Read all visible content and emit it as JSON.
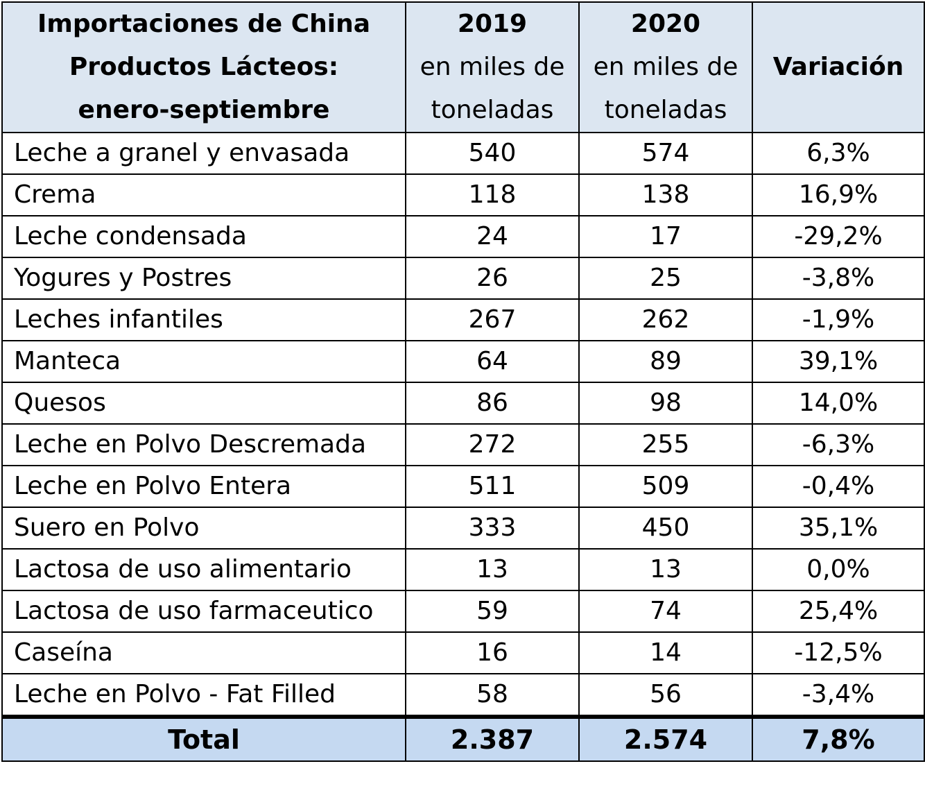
{
  "chart_data": {
    "type": "table",
    "header": {
      "product_lines": [
        "Importaciones de China",
        "Productos Lácteos:",
        "enero-septiembre"
      ],
      "col_2019": {
        "year": "2019",
        "unit_line1": "en miles de",
        "unit_line2": "toneladas"
      },
      "col_2020": {
        "year": "2020",
        "unit_line1": "en miles de",
        "unit_line2": "toneladas"
      },
      "col_var": "Variación"
    },
    "rows": [
      {
        "product": "Leche a granel y envasada",
        "y2019": "540",
        "y2020": "574",
        "variation": "6,3%"
      },
      {
        "product": "Crema",
        "y2019": "118",
        "y2020": "138",
        "variation": "16,9%"
      },
      {
        "product": "Leche condensada",
        "y2019": "24",
        "y2020": "17",
        "variation": "-29,2%"
      },
      {
        "product": "Yogures y Postres",
        "y2019": "26",
        "y2020": "25",
        "variation": "-3,8%"
      },
      {
        "product": "Leches infantiles",
        "y2019": "267",
        "y2020": "262",
        "variation": "-1,9%"
      },
      {
        "product": "Manteca",
        "y2019": "64",
        "y2020": "89",
        "variation": "39,1%"
      },
      {
        "product": "Quesos",
        "y2019": "86",
        "y2020": "98",
        "variation": "14,0%"
      },
      {
        "product": "Leche en Polvo Descremada",
        "y2019": "272",
        "y2020": "255",
        "variation": "-6,3%"
      },
      {
        "product": "Leche en Polvo Entera",
        "y2019": "511",
        "y2020": "509",
        "variation": "-0,4%"
      },
      {
        "product": "Suero en Polvo",
        "y2019": "333",
        "y2020": "450",
        "variation": "35,1%"
      },
      {
        "product": "Lactosa de uso alimentario",
        "y2019": "13",
        "y2020": "13",
        "variation": "0,0%"
      },
      {
        "product": "Lactosa de uso farmaceutico",
        "y2019": "59",
        "y2020": "74",
        "variation": "25,4%"
      },
      {
        "product": "Caseína",
        "y2019": "16",
        "y2020": "14",
        "variation": "-12,5%"
      },
      {
        "product": "Leche en Polvo - Fat Filled",
        "y2019": "58",
        "y2020": "56",
        "variation": "-3,4%"
      }
    ],
    "total": {
      "label": "Total",
      "y2019": "2.387",
      "y2020": "2.574",
      "variation": "7,8%"
    },
    "colors": {
      "header_bg": "#dce6f1",
      "total_bg": "#c5d9f1",
      "border": "#000000"
    }
  }
}
